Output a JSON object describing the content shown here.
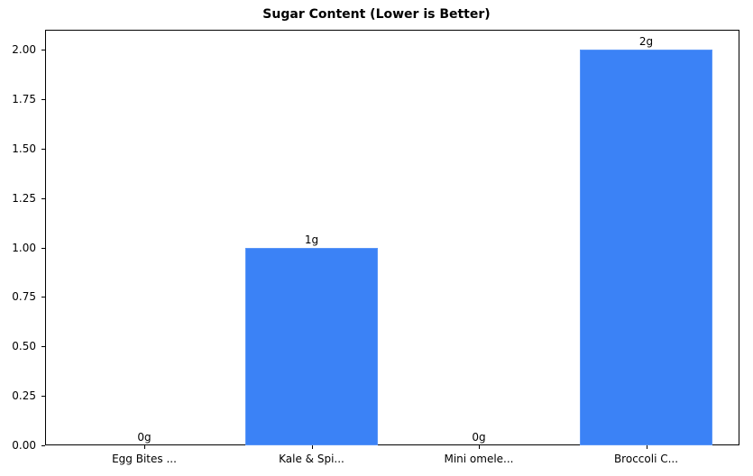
{
  "chart_data": {
    "type": "bar",
    "title": "Sugar Content (Lower is Better)",
    "xlabel": "",
    "ylabel": "",
    "categories": [
      "Egg Bites ...",
      "Kale & Spi...",
      "Mini omele...",
      "Broccoli C..."
    ],
    "values": [
      0,
      1,
      0,
      2
    ],
    "value_labels": [
      "0g",
      "1g",
      "0g",
      "2g"
    ],
    "ylim": [
      0,
      2.1
    ],
    "yticks": [
      "0.00",
      "0.25",
      "0.50",
      "0.75",
      "1.00",
      "1.25",
      "1.50",
      "1.75",
      "2.00"
    ],
    "grid": false,
    "legend": null,
    "bar_color": "#3b82f6"
  }
}
